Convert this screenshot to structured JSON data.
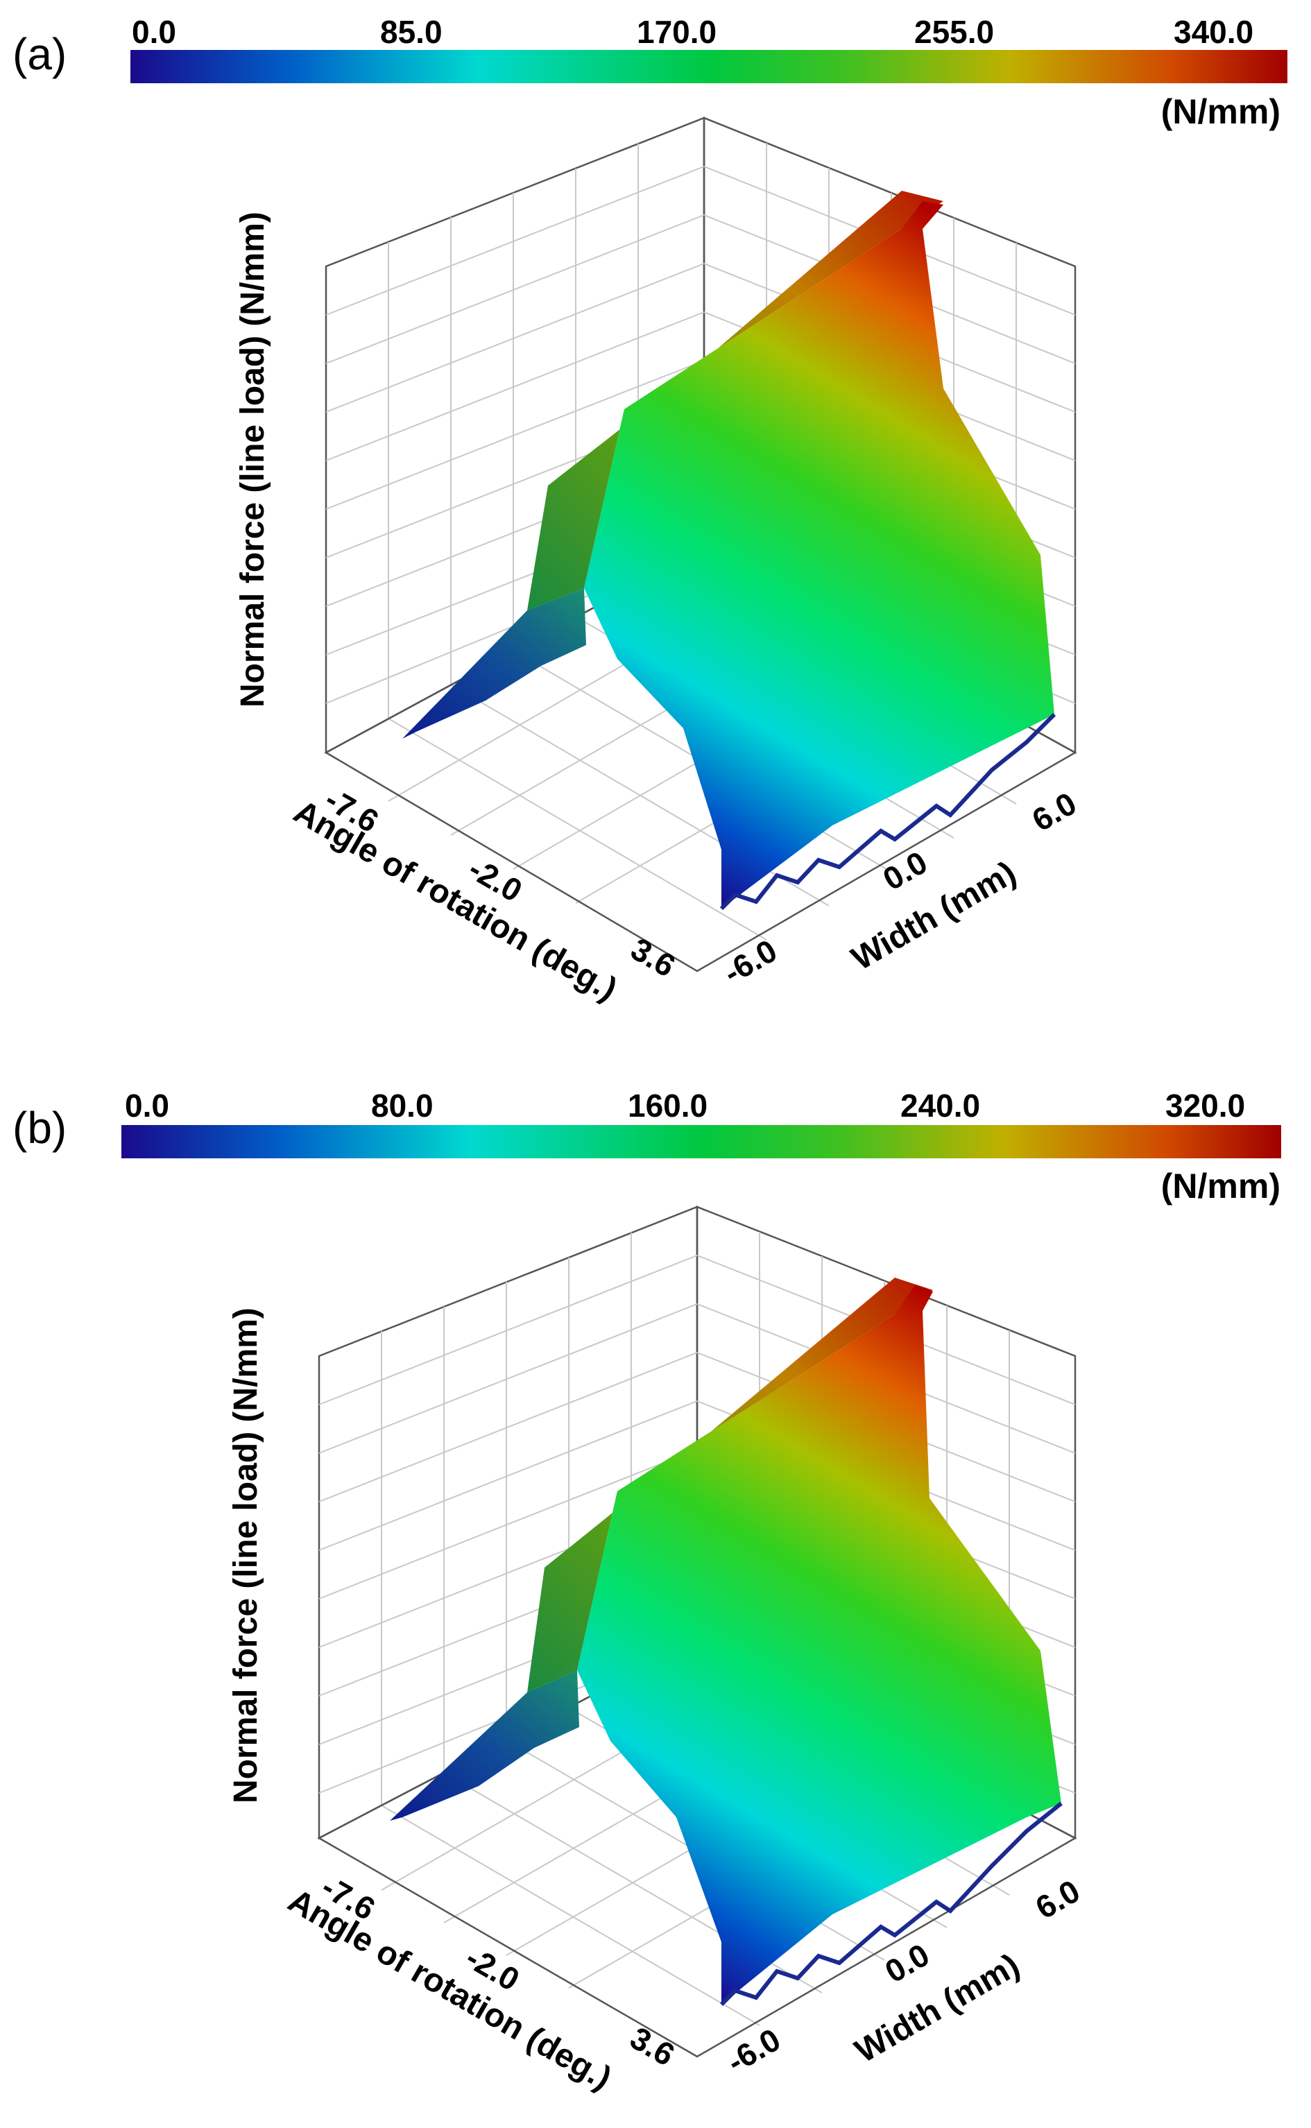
{
  "chart_data": [
    {
      "panel_label": "(a)",
      "type": "surface3d",
      "colorbar": {
        "ticks": [
          "0.0",
          "85.0",
          "170.0",
          "255.0",
          "340.0"
        ],
        "min": 0,
        "max": 340,
        "unit": "(N/mm)",
        "colors": [
          "#1a0a8c",
          "#0060c8",
          "#00e0d8",
          "#00d040",
          "#40c020",
          "#c0b000",
          "#d05000",
          "#a00000"
        ]
      },
      "zlabel": "Normal force (line load) (N/mm)",
      "xlabel": "Angle of rotation (deg.)",
      "xticks": [
        "-7.6",
        "-2.0",
        "3.6"
      ],
      "ylabel": "Width (mm)",
      "yticks": [
        "-6.0",
        "0.0",
        "6.0"
      ],
      "peak_value": 340
    },
    {
      "panel_label": "(b)",
      "type": "surface3d",
      "colorbar": {
        "ticks": [
          "0.0",
          "80.0",
          "160.0",
          "240.0",
          "320.0"
        ],
        "min": 0,
        "max": 320,
        "unit": "(N/mm)",
        "colors": [
          "#1a0a8c",
          "#0060c8",
          "#00e0d8",
          "#00d040",
          "#40c020",
          "#c0b000",
          "#d05000",
          "#a00000"
        ]
      },
      "zlabel": "Normal force (line load) (N/mm)",
      "xlabel": "Angle of rotation (deg.)",
      "xticks": [
        "-7.6",
        "-2.0",
        "3.6"
      ],
      "ylabel": "Width (mm)",
      "yticks": [
        "-6.0",
        "0.0",
        "6.0"
      ],
      "peak_value": 320
    }
  ]
}
